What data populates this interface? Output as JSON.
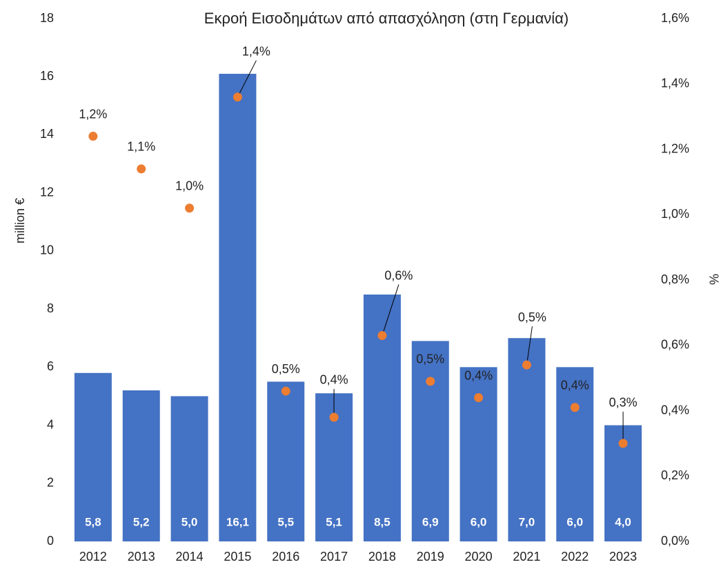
{
  "chart_data": {
    "type": "bar_scatter",
    "title": "Εκροή Εισοδημάτων από απασχόληση (στη Γερμανία)",
    "ylabel": "million €",
    "y2label": "%",
    "categories": [
      "2012",
      "2013",
      "2014",
      "2015",
      "2016",
      "2017",
      "2018",
      "2019",
      "2020",
      "2021",
      "2022",
      "2023"
    ],
    "series": [
      {
        "name": "million €",
        "type": "bar",
        "color": "#4472c4",
        "values": [
          5.8,
          5.2,
          5.0,
          16.1,
          5.5,
          5.1,
          8.5,
          6.9,
          6.0,
          7.0,
          6.0,
          4.0
        ],
        "value_labels": [
          "5,8",
          "5,2",
          "5,0",
          "16,1",
          "5,5",
          "5,1",
          "8,5",
          "6,9",
          "6,0",
          "7,0",
          "6,0",
          "4,0"
        ]
      },
      {
        "name": "%",
        "type": "scatter",
        "axis": "y2",
        "color": "#ed7d31",
        "values": [
          1.24,
          1.14,
          1.02,
          1.36,
          0.46,
          0.38,
          0.63,
          0.49,
          0.44,
          0.54,
          0.41,
          0.3
        ],
        "value_labels": [
          "1,2%",
          "1,1%",
          "1,0%",
          "1,4%",
          "0,5%",
          "0,4%",
          "0,6%",
          "0,5%",
          "0,4%",
          "0,5%",
          "0,4%",
          "0,3%"
        ]
      }
    ],
    "ylim": [
      0,
      18
    ],
    "yticks": [
      0,
      2,
      4,
      6,
      8,
      10,
      12,
      14,
      16,
      18
    ],
    "y2lim": [
      0,
      1.6
    ],
    "y2ticks": [
      {
        "value": 0,
        "label": "0,0%"
      },
      {
        "value": 0.2,
        "label": "0,2%"
      },
      {
        "value": 0.4,
        "label": "0,4%"
      },
      {
        "value": 0.6,
        "label": "0,6%"
      },
      {
        "value": 0.8,
        "label": "0,8%"
      },
      {
        "value": 1.0,
        "label": "1,0%"
      },
      {
        "value": 1.2,
        "label": "1,2%"
      },
      {
        "value": 1.4,
        "label": "1,4%"
      },
      {
        "value": 1.6,
        "label": "1,6%"
      }
    ],
    "grid": false
  }
}
